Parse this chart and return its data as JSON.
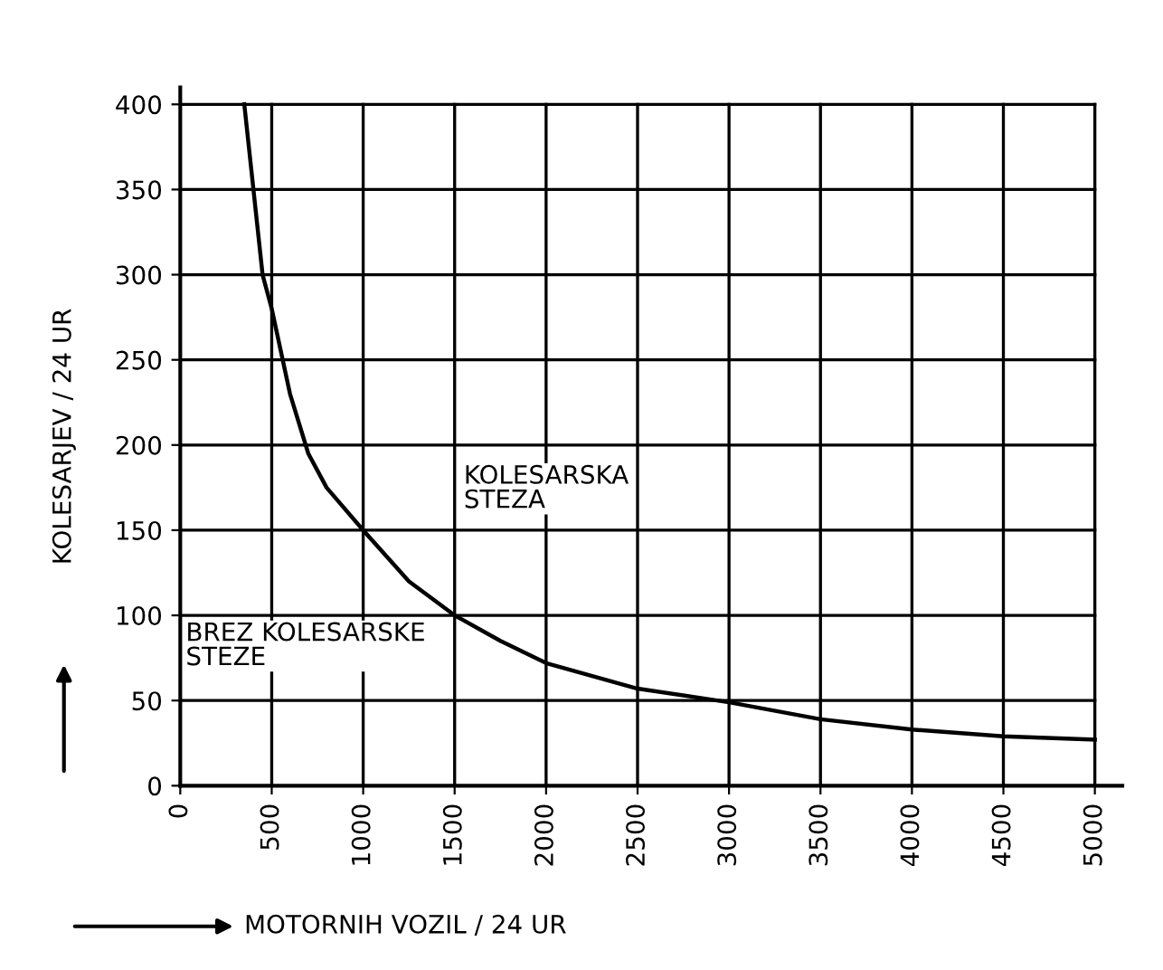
{
  "chart_data": {
    "type": "line",
    "xlabel": "MOTORNIH VOZIL / 24 UR",
    "ylabel": "KOLESARJEV / 24 UR",
    "annotations": [
      "KOLESARSKA\nSTEZA",
      "BREZ KOLESARSKE\nSTEZE"
    ],
    "series": [
      {
        "color": "#000000",
        "x": [
          350,
          450,
          500,
          600,
          700,
          800,
          1000,
          1250,
          1500,
          1750,
          2000,
          2500,
          3000,
          3500,
          4000,
          4500,
          5000
        ],
        "values": [
          400,
          300,
          280,
          230,
          195,
          175,
          150,
          120,
          100,
          85,
          72,
          57,
          49,
          39,
          33,
          29,
          27
        ]
      }
    ],
    "xlim": [
      0,
      5150
    ],
    "ylim": [
      0,
      410
    ],
    "xticks": [
      0,
      500,
      1000,
      1500,
      2000,
      2500,
      3000,
      3500,
      4000,
      4500,
      5000
    ],
    "yticks": [
      0,
      50,
      100,
      150,
      200,
      250,
      300,
      350,
      400
    ],
    "grid": true,
    "marker": "none",
    "line_style": "solid",
    "legend": false
  }
}
